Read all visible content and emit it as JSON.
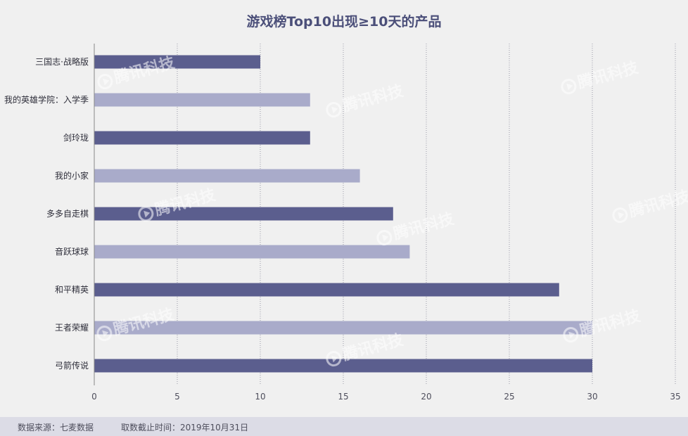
{
  "chart_data": {
    "type": "bar",
    "orientation": "horizontal",
    "title": "游戏榜Top10出现≥10天的产品",
    "categories": [
      "三国志·战略版",
      "我的英雄学院：入学季",
      "剑玲珑",
      "我的小家",
      "多多自走棋",
      "音跃球球",
      "和平精英",
      "王者荣耀",
      "弓箭传说"
    ],
    "values": [
      10,
      13,
      13,
      16,
      18,
      19,
      28,
      30,
      30
    ],
    "bar_colors": [
      "#5b5e8e",
      "#a9abca",
      "#5b5e8e",
      "#a9abca",
      "#5b5e8e",
      "#a9abca",
      "#5b5e8e",
      "#a9abca",
      "#5b5e8e"
    ],
    "xlim": [
      0,
      35
    ],
    "xticks": [
      0,
      5,
      10,
      15,
      20,
      25,
      30,
      35
    ],
    "xlabel": "",
    "ylabel": "",
    "grid": "vertical dotted",
    "legend": "none"
  },
  "footer": {
    "source": "数据来源：七麦数据",
    "date": "取数截止时间：2019年10月31日"
  },
  "watermark": {
    "text": "腾讯科技"
  }
}
